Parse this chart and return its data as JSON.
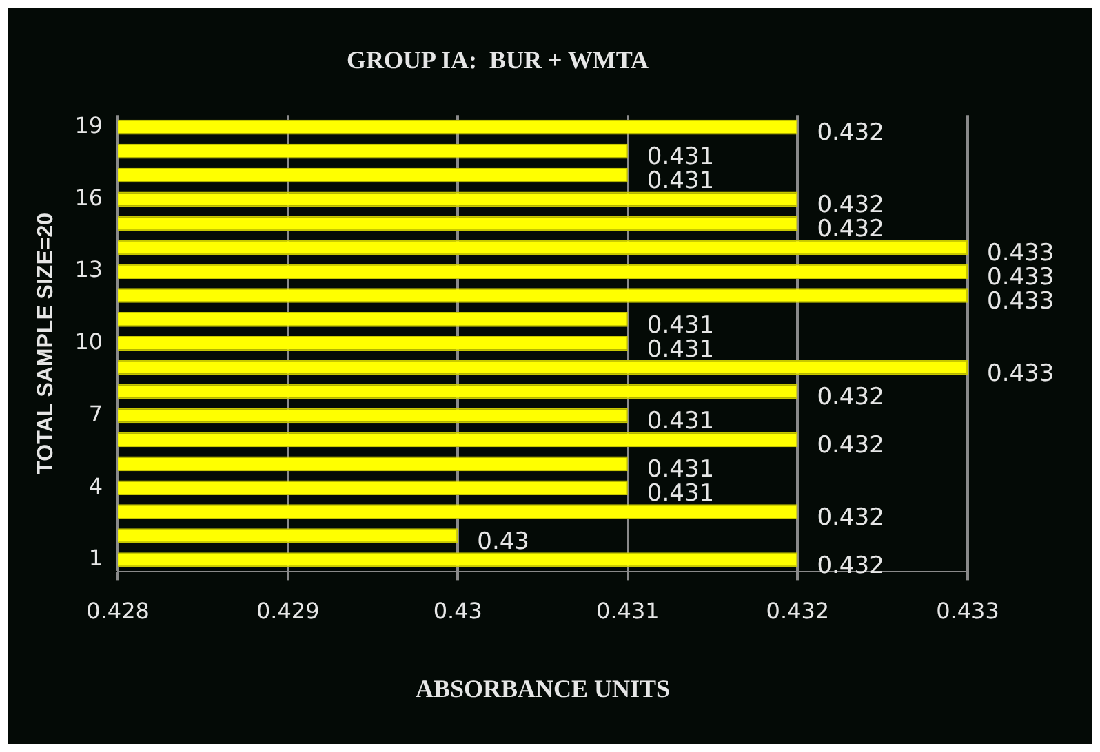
{
  "chart_data": {
    "type": "bar",
    "orientation": "horizontal",
    "title": "GROUP IA:  BUR + WMTA",
    "xlabel": "ABSORBANCE UNITS",
    "ylabel": "TOTAL SAMPLE SIZE=20",
    "categories": [
      "19",
      null,
      null,
      "16",
      null,
      null,
      "13",
      null,
      null,
      "10",
      null,
      null,
      "7",
      null,
      null,
      "4",
      null,
      null,
      "1"
    ],
    "values": [
      0.432,
      0.431,
      0.431,
      0.432,
      0.432,
      0.433,
      0.433,
      0.433,
      0.431,
      0.431,
      0.433,
      0.432,
      0.431,
      0.432,
      0.431,
      0.431,
      0.432,
      0.43,
      0.432
    ],
    "color": "#ffff00",
    "xlim": [
      0.428,
      0.433
    ],
    "xticks": [
      0.428,
      0.429,
      0.43,
      0.431,
      0.432,
      0.433
    ],
    "grid": "x",
    "data_labels": true
  }
}
